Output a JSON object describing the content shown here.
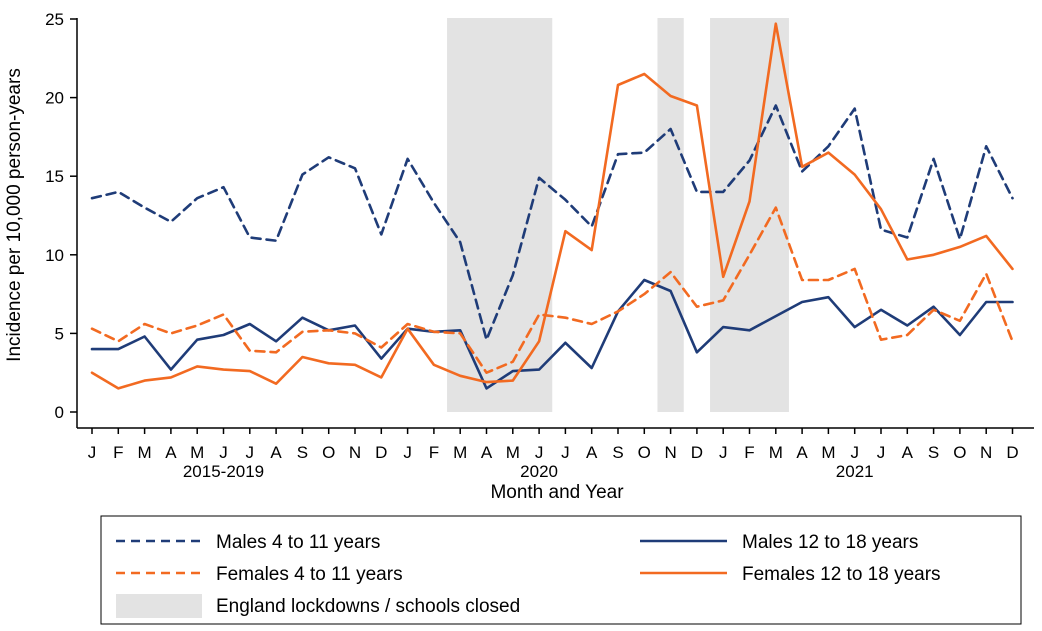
{
  "chart_data": {
    "type": "line",
    "xlabel": "Month and Year",
    "ylabel": "Incidence per 10,000 person-years",
    "ylim": [
      0,
      25
    ],
    "yticks": [
      0,
      5,
      10,
      15,
      20,
      25
    ],
    "grid": false,
    "categories": [
      "J",
      "F",
      "M",
      "A",
      "M",
      "J",
      "J",
      "A",
      "S",
      "O",
      "N",
      "D",
      "J",
      "F",
      "M",
      "A",
      "M",
      "J",
      "J",
      "A",
      "S",
      "O",
      "N",
      "D",
      "J",
      "F",
      "M",
      "A",
      "M",
      "J",
      "J",
      "A",
      "S",
      "O",
      "N",
      "D"
    ],
    "year_labels": [
      {
        "label": "2015-2019",
        "center_index": 5
      },
      {
        "label": "2020",
        "center_index": 17
      },
      {
        "label": "2021",
        "center_index": 29
      }
    ],
    "shaded_regions": [
      {
        "start": 13.5,
        "end": 17.5
      },
      {
        "start": 21.5,
        "end": 22.5
      },
      {
        "start": 23.5,
        "end": 26.5
      }
    ],
    "series": [
      {
        "name": "Males 4 to 11 years",
        "color": "#1f3c78",
        "dash": "dashed",
        "values": [
          13.6,
          14.0,
          13.0,
          12.1,
          13.6,
          14.3,
          11.1,
          10.9,
          15.1,
          16.2,
          15.5,
          11.3,
          16.1,
          13.3,
          10.8,
          4.6,
          8.7,
          14.9,
          13.5,
          11.8,
          16.4,
          16.5,
          18.0,
          14.0,
          14.0,
          16.0,
          19.5,
          15.3,
          16.9,
          19.3,
          11.6,
          11.1,
          16.1,
          11.0,
          16.9,
          13.6
        ]
      },
      {
        "name": "Males 12 to 18 years",
        "color": "#1f3c78",
        "dash": "solid",
        "values": [
          4.0,
          4.0,
          4.8,
          2.7,
          4.6,
          4.9,
          5.6,
          4.5,
          6.0,
          5.2,
          5.5,
          3.4,
          5.3,
          5.1,
          5.2,
          1.5,
          2.6,
          2.7,
          4.4,
          2.8,
          6.4,
          8.4,
          7.7,
          3.8,
          5.4,
          5.2,
          6.1,
          7.0,
          7.3,
          5.4,
          6.5,
          5.5,
          6.7,
          4.9,
          7.0,
          7.0
        ]
      },
      {
        "name": "Females 4 to 11 years",
        "color": "#f26a21",
        "dash": "dashed",
        "values": [
          5.3,
          4.5,
          5.6,
          5.0,
          5.5,
          6.2,
          3.9,
          3.8,
          5.1,
          5.2,
          5.0,
          4.1,
          5.6,
          5.1,
          5.0,
          2.5,
          3.2,
          6.2,
          6.0,
          5.6,
          6.4,
          7.5,
          8.9,
          6.7,
          7.1,
          10.0,
          13.0,
          8.4,
          8.4,
          9.1,
          4.6,
          4.9,
          6.5,
          5.8,
          8.8,
          4.5
        ]
      },
      {
        "name": "Females 12 to 18 years",
        "color": "#f26a21",
        "dash": "solid",
        "values": [
          2.5,
          1.5,
          2.0,
          2.2,
          2.9,
          2.7,
          2.6,
          1.8,
          3.5,
          3.1,
          3.0,
          2.2,
          5.3,
          3.0,
          2.3,
          1.9,
          2.0,
          4.5,
          11.5,
          10.3,
          20.8,
          21.5,
          20.1,
          19.5,
          8.6,
          13.4,
          24.7,
          15.6,
          16.5,
          15.1,
          12.9,
          9.7,
          10.0,
          10.5,
          11.2,
          9.1
        ]
      }
    ],
    "legend": {
      "position": "bottom",
      "entries": [
        "Males 4 to 11 years",
        "Males 12 to 18 years",
        "Females 4 to 11 years",
        "Females 12 to 18 years",
        "England lockdowns / schools closed"
      ]
    }
  }
}
